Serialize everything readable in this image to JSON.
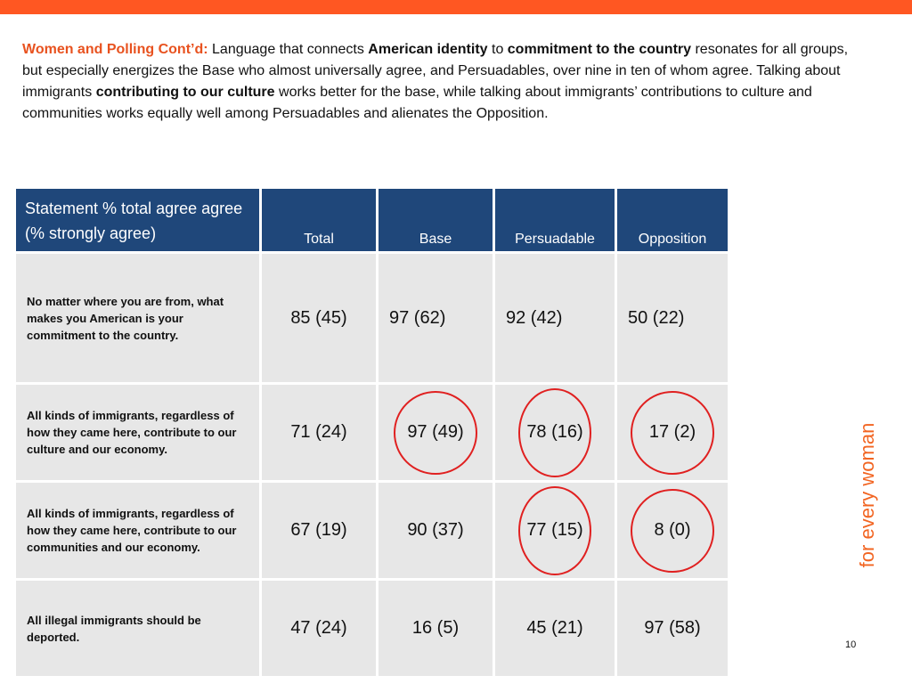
{
  "intro": {
    "lead": "Women and Polling Cont’d:",
    "t1": " Language that connects ",
    "b1": "American identity",
    "t2": " to ",
    "b2": "commitment to the country",
    "t3": " resonates for all groups, but especially energizes the Base who almost universally agree, and Persuadables, over nine in ten of whom agree. Talking about immigrants ",
    "b3": "contributing to our culture",
    "t4": " works better for the base, while talking about immigrants’ contributions to culture and communities works equally well among Persuadables and alienates the Opposition."
  },
  "table": {
    "statement_header": "Statement % total agree agree (% strongly agree)",
    "col_total": "Total",
    "col_base": "Base",
    "col_persuadable": "Persuadable",
    "col_opposition": "Opposition",
    "rows": [
      {
        "statement": "No matter where you are from, what makes you American is your commitment to the country.",
        "total": "85 (45)",
        "base": "97 (62)",
        "persuadable": "92 (42)",
        "opposition": "50 (22)"
      },
      {
        "statement": "All kinds of immigrants, regardless of how they came here, contribute to our culture and our economy.",
        "total": "71 (24)",
        "base": "97 (49)",
        "persuadable": "78 (16)",
        "opposition": "17 (2)"
      },
      {
        "statement": "All kinds of immigrants, regardless of how they came here, contribute to our communities and our economy.",
        "total": "67 (19)",
        "base": "90 (37)",
        "persuadable": "77 (15)",
        "opposition": "8 (0)"
      },
      {
        "statement": "All illegal immigrants should be deported.",
        "total": "47 (24)",
        "base": "16 (5)",
        "persuadable": "45 (21)",
        "opposition": "97 (58)"
      }
    ]
  },
  "side_text": "for every woman",
  "page_number": "10",
  "colors": {
    "top_bar": "#ff5722",
    "header_bg": "#1f477a",
    "accent": "#e8521f",
    "circle": "#e02020",
    "cell_bg": "#e7e7e7"
  }
}
